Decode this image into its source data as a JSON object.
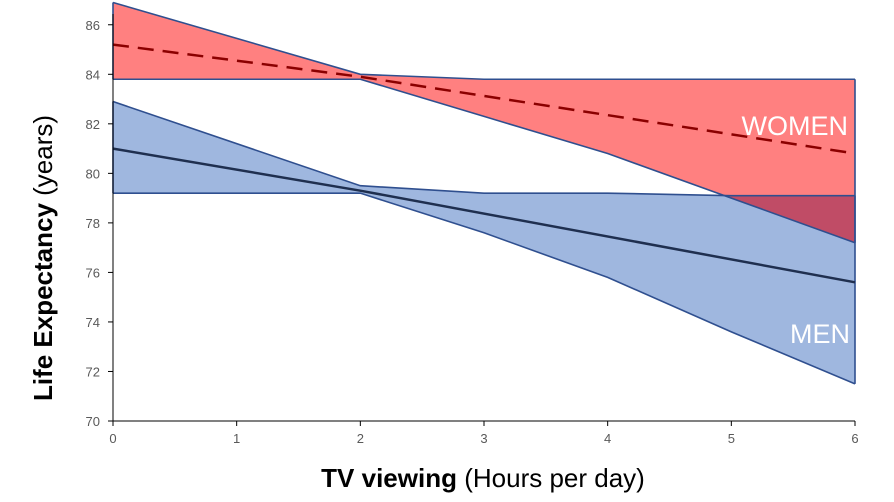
{
  "chart_data": {
    "type": "area",
    "title": "",
    "xlabel": {
      "bold": "TV viewing",
      "normal": " (Hours per day)"
    },
    "ylabel": {
      "bold": "Life Expectancy",
      "normal": " (years)"
    },
    "xlim": [
      0,
      6
    ],
    "ylim": [
      70,
      87
    ],
    "xticks": [
      "0",
      "1",
      "2",
      "3",
      "4",
      "5",
      "6"
    ],
    "yticks": [
      "70",
      "72",
      "74",
      "76",
      "78",
      "80",
      "82",
      "84",
      "86"
    ],
    "grid": false,
    "legend": "none",
    "bands": [
      {
        "name": "WOMEN",
        "color": "#ff8080",
        "edge": "#2f4f8f",
        "x": [
          0,
          2,
          3,
          4,
          5,
          6
        ],
        "upper": [
          86.9,
          84.0,
          83.8,
          83.8,
          83.8,
          83.8
        ],
        "lower": [
          83.8,
          83.8,
          82.3,
          80.8,
          79.0,
          77.2
        ],
        "central": {
          "style": "dashed",
          "color": "#8b0000",
          "x": [
            0,
            2,
            6
          ],
          "y": [
            85.2,
            83.9,
            80.8
          ]
        }
      },
      {
        "name": "MEN",
        "color": "#9fb7df",
        "edge": "#2f4f8f",
        "x": [
          0,
          2,
          3,
          4,
          5,
          6
        ],
        "upper": [
          82.9,
          79.5,
          79.2,
          79.2,
          79.1,
          79.1
        ],
        "lower": [
          79.2,
          79.2,
          77.6,
          75.8,
          73.6,
          71.5
        ],
        "central": {
          "style": "solid",
          "color": "#1f2f4f",
          "x": [
            0,
            2,
            6
          ],
          "y": [
            81.0,
            79.3,
            75.6
          ]
        }
      }
    ],
    "overlap": {
      "color": "#c04c66"
    }
  }
}
